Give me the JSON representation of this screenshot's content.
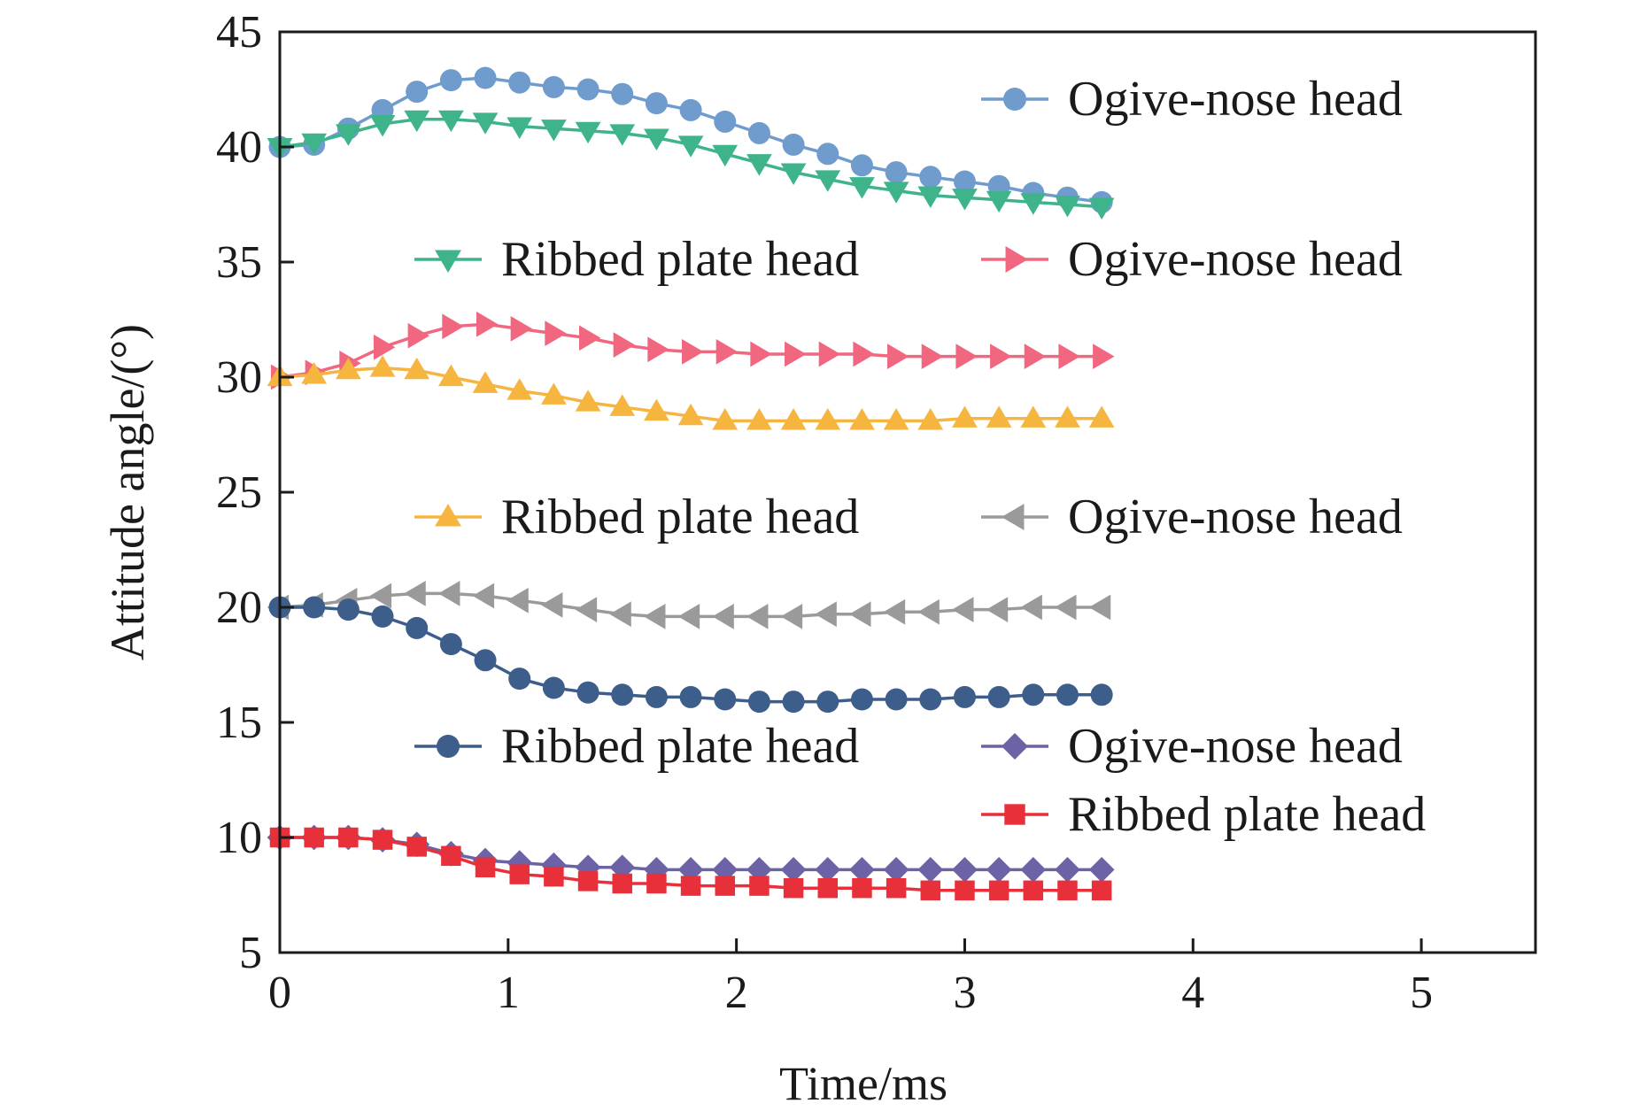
{
  "chart_data": {
    "type": "line",
    "title": "",
    "xlabel": "Time/ms",
    "ylabel": "Attitude angle/(°)",
    "xlim": [
      0,
      5.5
    ],
    "ylim": [
      5,
      45
    ],
    "xticks": [
      "0",
      "1",
      "2",
      "3",
      "4",
      "5"
    ],
    "yticks": [
      "5",
      "10",
      "15",
      "20",
      "25",
      "30",
      "35",
      "40",
      "45"
    ],
    "grid": false,
    "x": [
      0,
      0.15,
      0.3,
      0.45,
      0.6,
      0.75,
      0.9,
      1.05,
      1.2,
      1.35,
      1.5,
      1.65,
      1.8,
      1.95,
      2.1,
      2.25,
      2.4,
      2.55,
      2.7,
      2.85,
      3.0,
      3.15,
      3.3,
      3.45,
      3.6
    ],
    "series": [
      {
        "name": "Ogive-nose head",
        "color": "#6f9ccd",
        "marker": "circle",
        "values": [
          40.0,
          40.1,
          40.8,
          41.6,
          42.4,
          42.9,
          43.0,
          42.8,
          42.6,
          42.5,
          42.3,
          41.9,
          41.6,
          41.1,
          40.6,
          40.1,
          39.7,
          39.2,
          38.9,
          38.7,
          38.5,
          38.3,
          38.0,
          37.8,
          37.6
        ]
      },
      {
        "name": "Ribbed plate head",
        "color": "#3fb389",
        "marker": "triangle-down",
        "values": [
          40.0,
          40.2,
          40.6,
          41.0,
          41.2,
          41.2,
          41.1,
          40.9,
          40.8,
          40.7,
          40.6,
          40.4,
          40.1,
          39.7,
          39.3,
          38.9,
          38.6,
          38.3,
          38.1,
          37.9,
          37.8,
          37.7,
          37.6,
          37.5,
          37.4
        ]
      },
      {
        "name": "Ogive-nose head",
        "color": "#f0677f",
        "marker": "triangle-right",
        "values": [
          30.0,
          30.2,
          30.6,
          31.3,
          31.8,
          32.2,
          32.3,
          32.1,
          31.9,
          31.7,
          31.4,
          31.2,
          31.1,
          31.1,
          31.0,
          31.0,
          31.0,
          31.0,
          30.9,
          30.9,
          30.9,
          30.9,
          30.9,
          30.9,
          30.9
        ]
      },
      {
        "name": "Ribbed plate head",
        "color": "#f5b53f",
        "marker": "triangle-up",
        "values": [
          30.0,
          30.1,
          30.3,
          30.4,
          30.3,
          30.0,
          29.7,
          29.4,
          29.2,
          28.9,
          28.7,
          28.5,
          28.3,
          28.1,
          28.1,
          28.1,
          28.1,
          28.1,
          28.1,
          28.1,
          28.2,
          28.2,
          28.2,
          28.2,
          28.2
        ]
      },
      {
        "name": "Ogive-nose head",
        "color": "#9a9a9a",
        "marker": "triangle-left",
        "values": [
          20.0,
          20.1,
          20.3,
          20.5,
          20.6,
          20.6,
          20.5,
          20.3,
          20.1,
          19.9,
          19.7,
          19.6,
          19.6,
          19.6,
          19.6,
          19.6,
          19.7,
          19.7,
          19.8,
          19.8,
          19.9,
          19.9,
          20.0,
          20.0,
          20.0
        ]
      },
      {
        "name": "Ribbed plate head",
        "color": "#3d5d8a",
        "marker": "circle",
        "values": [
          20.0,
          20.0,
          19.9,
          19.6,
          19.1,
          18.4,
          17.7,
          16.9,
          16.5,
          16.3,
          16.2,
          16.1,
          16.1,
          16.0,
          15.9,
          15.9,
          15.9,
          16.0,
          16.0,
          16.0,
          16.1,
          16.1,
          16.2,
          16.2,
          16.2
        ]
      },
      {
        "name": "Ogive-nose head",
        "color": "#6b63a5",
        "marker": "diamond",
        "values": [
          10.0,
          10.0,
          10.0,
          9.9,
          9.7,
          9.3,
          9.0,
          8.9,
          8.8,
          8.7,
          8.7,
          8.6,
          8.6,
          8.6,
          8.6,
          8.6,
          8.6,
          8.6,
          8.6,
          8.6,
          8.6,
          8.6,
          8.6,
          8.6,
          8.6
        ]
      },
      {
        "name": "Ribbed plate head",
        "color": "#e8303a",
        "marker": "square",
        "values": [
          10.0,
          10.0,
          10.0,
          9.9,
          9.6,
          9.2,
          8.7,
          8.4,
          8.3,
          8.1,
          8.0,
          8.0,
          7.9,
          7.9,
          7.9,
          7.8,
          7.8,
          7.8,
          7.8,
          7.7,
          7.7,
          7.7,
          7.7,
          7.7,
          7.7
        ]
      }
    ],
    "legend": [
      {
        "series": 0,
        "label": "Ogive-nose head"
      },
      {
        "series": 1,
        "label": "Ribbed plate head"
      },
      {
        "series": 2,
        "label": "Ogive-nose head"
      },
      {
        "series": 3,
        "label": "Ribbed plate head"
      },
      {
        "series": 4,
        "label": "Ogive-nose head"
      },
      {
        "series": 5,
        "label": "Ribbed plate head"
      },
      {
        "series": 6,
        "label": "Ogive-nose head"
      },
      {
        "series": 7,
        "label": "Ribbed plate head"
      }
    ]
  }
}
